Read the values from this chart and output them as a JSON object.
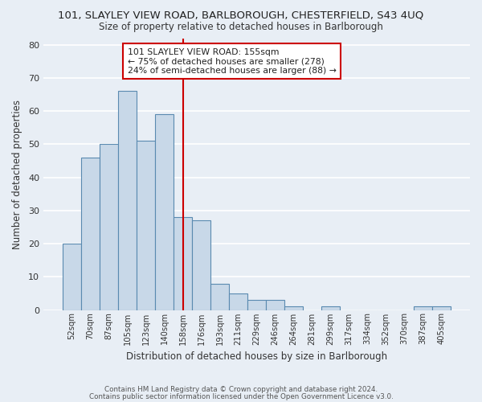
{
  "title_line1": "101, SLAYLEY VIEW ROAD, BARLBOROUGH, CHESTERFIELD, S43 4UQ",
  "title_line2": "Size of property relative to detached houses in Barlborough",
  "xlabel": "Distribution of detached houses by size in Barlborough",
  "ylabel": "Number of detached properties",
  "footer_line1": "Contains HM Land Registry data © Crown copyright and database right 2024.",
  "footer_line2": "Contains public sector information licensed under the Open Government Licence v3.0.",
  "bin_labels": [
    "52sqm",
    "70sqm",
    "87sqm",
    "105sqm",
    "123sqm",
    "140sqm",
    "158sqm",
    "176sqm",
    "193sqm",
    "211sqm",
    "229sqm",
    "246sqm",
    "264sqm",
    "281sqm",
    "299sqm",
    "317sqm",
    "334sqm",
    "352sqm",
    "370sqm",
    "387sqm",
    "405sqm"
  ],
  "bar_heights": [
    20,
    46,
    50,
    66,
    51,
    59,
    28,
    27,
    8,
    5,
    3,
    3,
    1,
    0,
    1,
    0,
    0,
    0,
    0,
    1,
    1
  ],
  "bar_color": "#c8d8e8",
  "bar_edge_color": "#5a8ab0",
  "vline_x_index": 6,
  "vline_color": "#cc0000",
  "annotation_line1": "101 SLAYLEY VIEW ROAD: 155sqm",
  "annotation_line2": "← 75% of detached houses are smaller (278)",
  "annotation_line3": "24% of semi-detached houses are larger (88) →",
  "annotation_box_color": "#ffffff",
  "annotation_box_edge_color": "#cc0000",
  "ylim": [
    0,
    82
  ],
  "yticks": [
    0,
    10,
    20,
    30,
    40,
    50,
    60,
    70,
    80
  ],
  "background_color": "#e8eef5",
  "grid_color": "#ffffff"
}
